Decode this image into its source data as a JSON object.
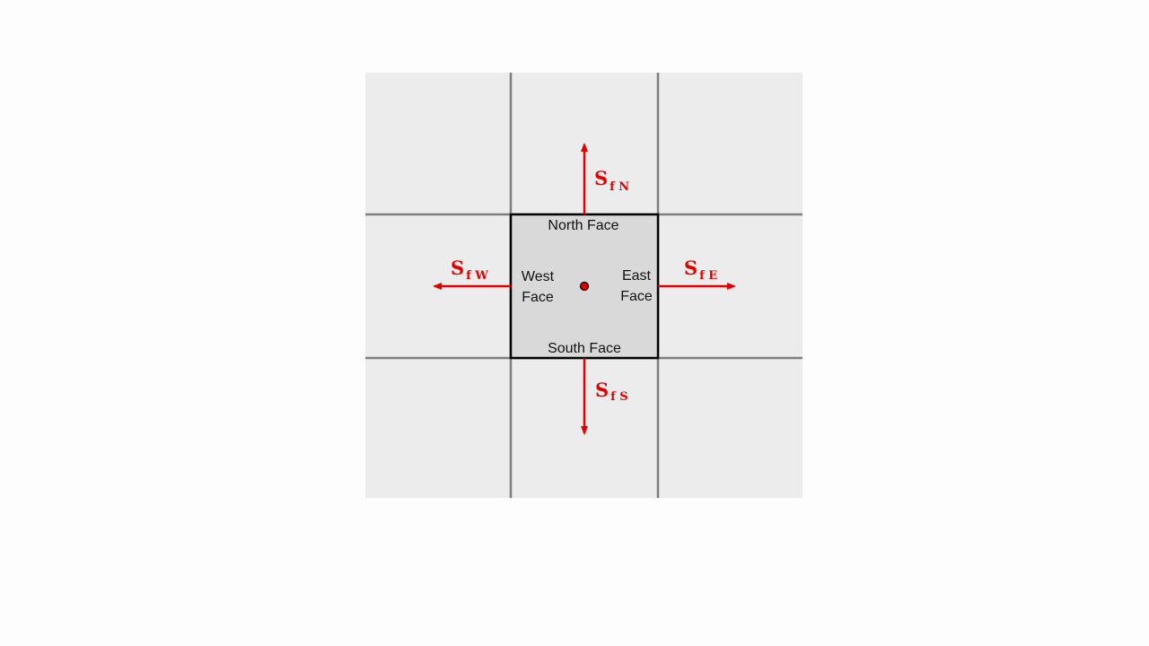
{
  "diagram": {
    "faces": {
      "north": "North Face",
      "south": "South Face",
      "west": [
        "West",
        "Face"
      ],
      "east": [
        "East",
        "Face"
      ]
    },
    "vectors": {
      "north": {
        "symbol": "S",
        "subscript": "f N"
      },
      "south": {
        "symbol": "S",
        "subscript": "f S"
      },
      "west": {
        "symbol": "S",
        "subscript": "f W"
      },
      "east": {
        "symbol": "S",
        "subscript": "f E"
      }
    },
    "colors": {
      "background": "#fdfdfd",
      "grid_fill": "#ececec",
      "cell_fill": "#d9d9d9",
      "grid_line": "#7f7f7f",
      "cell_border": "#000000",
      "vector": "#e00000"
    }
  }
}
